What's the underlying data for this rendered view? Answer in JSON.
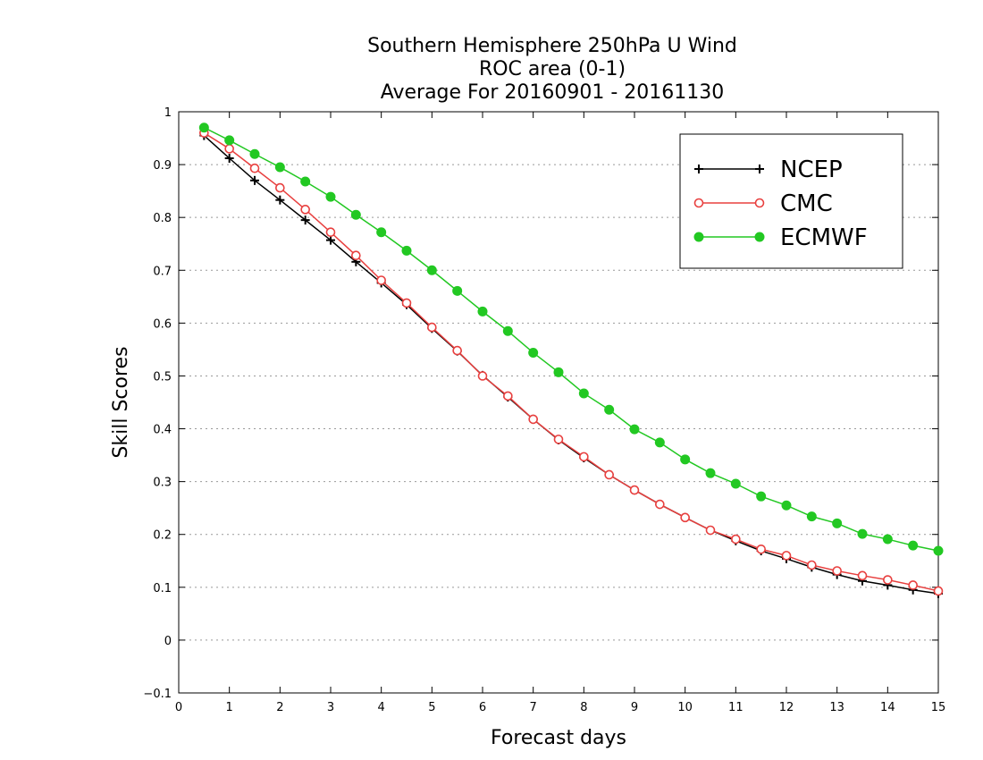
{
  "chart_data": {
    "type": "line",
    "title_lines": [
      "Southern Hemisphere 250hPa U Wind",
      "ROC area (0-1)",
      "Average For 20160901 - 20161130"
    ],
    "xlabel": "Forecast days",
    "ylabel": "Skill Scores",
    "xlim": [
      0,
      15
    ],
    "ylim": [
      -0.1,
      1
    ],
    "xticks": [
      0,
      1,
      2,
      3,
      4,
      5,
      6,
      7,
      8,
      9,
      10,
      11,
      12,
      13,
      14,
      15
    ],
    "yticks": [
      -0.1,
      0,
      0.1,
      0.2,
      0.3,
      0.4,
      0.5,
      0.6,
      0.7,
      0.8,
      0.9,
      1
    ],
    "xtick_labels": [
      "0",
      "1",
      "2",
      "3",
      "4",
      "5",
      "6",
      "7",
      "8",
      "9",
      "10",
      "11",
      "12",
      "13",
      "14",
      "15"
    ],
    "ytick_labels": [
      "−0.1",
      "0",
      "0.1",
      "0.2",
      "0.3",
      "0.4",
      "0.5",
      "0.6",
      "0.7",
      "0.8",
      "0.9",
      "1"
    ],
    "grid": "horizontal dotted",
    "legend_position": "top-right",
    "x": [
      0.5,
      1,
      1.5,
      2,
      2.5,
      3,
      3.5,
      4,
      4.5,
      5,
      5.5,
      6,
      6.5,
      7,
      7.5,
      8,
      8.5,
      9,
      9.5,
      10,
      10.5,
      11,
      11.5,
      12,
      12.5,
      13,
      13.5,
      14,
      14.5,
      15
    ],
    "series": [
      {
        "name": "NCEP",
        "color": "#000000",
        "marker": "plus",
        "values": [
          0.955,
          0.912,
          0.87,
          0.833,
          0.795,
          0.757,
          0.716,
          0.676,
          0.635,
          0.59,
          0.547,
          0.501,
          0.46,
          0.418,
          0.379,
          0.345,
          0.313,
          0.284,
          0.257,
          0.232,
          0.208,
          0.188,
          0.169,
          0.154,
          0.138,
          0.124,
          0.112,
          0.104,
          0.095,
          0.088
        ]
      },
      {
        "name": "CMC",
        "color": "#e8403f",
        "marker": "open-circle",
        "values": [
          0.96,
          0.93,
          0.893,
          0.856,
          0.815,
          0.772,
          0.728,
          0.681,
          0.638,
          0.592,
          0.548,
          0.5,
          0.462,
          0.418,
          0.38,
          0.347,
          0.313,
          0.284,
          0.257,
          0.232,
          0.208,
          0.191,
          0.172,
          0.16,
          0.142,
          0.131,
          0.122,
          0.114,
          0.104,
          0.093
        ]
      },
      {
        "name": "ECMWF",
        "color": "#22c822",
        "marker": "filled-circle",
        "values": [
          0.97,
          0.946,
          0.92,
          0.895,
          0.868,
          0.839,
          0.805,
          0.772,
          0.737,
          0.7,
          0.661,
          0.622,
          0.585,
          0.544,
          0.507,
          0.467,
          0.436,
          0.399,
          0.374,
          0.342,
          0.316,
          0.296,
          0.272,
          0.255,
          0.234,
          0.221,
          0.201,
          0.191,
          0.179,
          0.169
        ]
      }
    ]
  }
}
